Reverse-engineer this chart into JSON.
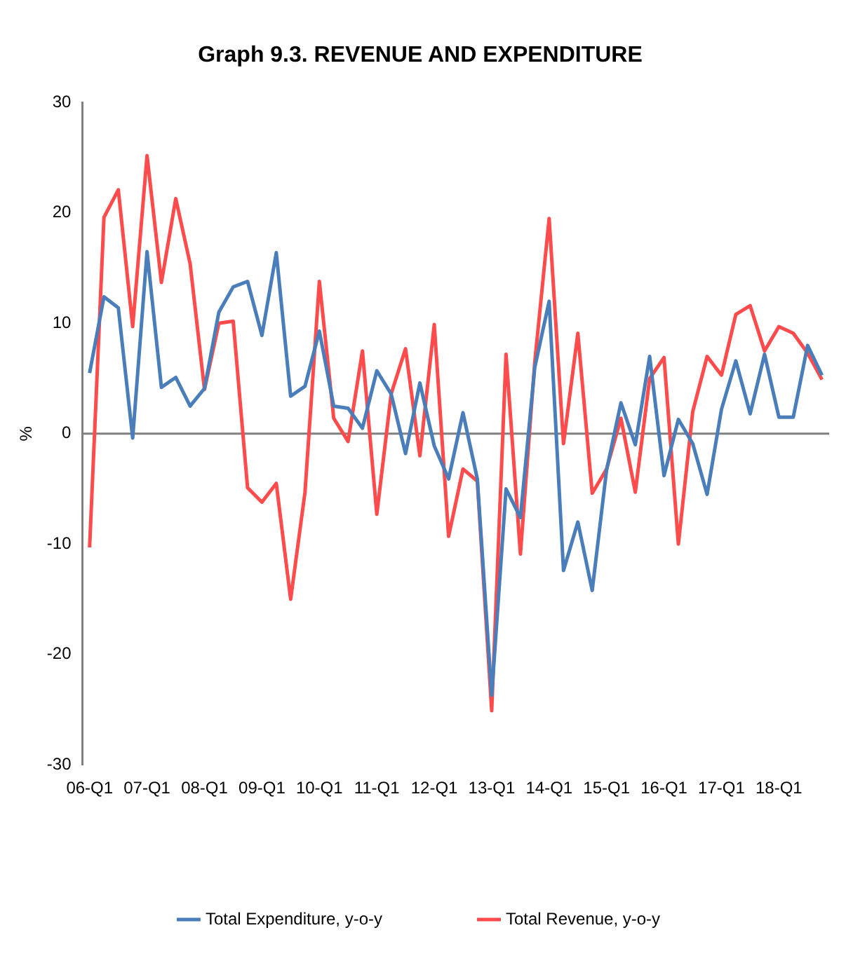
{
  "chart_data": {
    "type": "line",
    "title": "Graph 9.3. REVENUE AND EXPENDITURE",
    "ylabel": "%",
    "categories": [
      "06-Q1",
      null,
      null,
      null,
      "07-Q1",
      null,
      null,
      null,
      "08-Q1",
      null,
      null,
      null,
      "09-Q1",
      null,
      null,
      null,
      "10-Q1",
      null,
      null,
      null,
      "11-Q1",
      null,
      null,
      null,
      "12-Q1",
      null,
      null,
      null,
      "13-Q1",
      null,
      null,
      null,
      "14-Q1",
      null,
      null,
      null,
      "15-Q1",
      null,
      null,
      null,
      "16-Q1",
      null,
      null,
      null,
      "17-Q1",
      null,
      null,
      null,
      "18-Q1",
      null,
      null,
      null
    ],
    "series": [
      {
        "name": "Total Expenditure, y-o-y",
        "color": "#4a7ebb",
        "values": [
          5.5,
          12.4,
          11.4,
          -0.4,
          16.5,
          4.2,
          5.1,
          2.5,
          4.1,
          11.0,
          13.3,
          13.8,
          8.9,
          16.4,
          3.4,
          4.3,
          9.3,
          2.5,
          2.3,
          0.5,
          5.7,
          3.6,
          -1.8,
          4.6,
          -1.1,
          -4.1,
          1.9,
          -4.1,
          -23.7,
          -5.0,
          -7.6,
          6.0,
          12.0,
          -12.4,
          -8.0,
          -14.2,
          -3.3,
          2.8,
          -1.0,
          7.0,
          -3.8,
          1.3,
          -0.9,
          -5.5,
          2.2,
          6.6,
          1.8,
          7.2,
          1.5,
          1.5,
          8.0,
          5.3
        ]
      },
      {
        "name": "Total Revenue, y-o-y",
        "color": "#ff4b4b",
        "values": [
          -10.3,
          19.6,
          22.1,
          9.7,
          25.2,
          13.7,
          21.3,
          15.4,
          4.0,
          10.0,
          10.2,
          -4.9,
          -6.2,
          -4.5,
          -15.0,
          -5.3,
          13.8,
          1.4,
          -0.7,
          7.5,
          -7.3,
          3.6,
          7.7,
          -2.0,
          9.9,
          -9.3,
          -3.2,
          -4.3,
          -25.1,
          7.2,
          -10.9,
          6.5,
          19.5,
          -0.9,
          9.1,
          -5.4,
          -3.2,
          1.4,
          -5.3,
          5.0,
          6.9,
          -10.0,
          2.0,
          7.0,
          5.3,
          10.8,
          11.6,
          7.5,
          9.7,
          9.1,
          7.3,
          4.9
        ]
      }
    ],
    "ylim": [
      -30,
      30
    ],
    "yticks": [
      -30,
      -20,
      -10,
      0,
      10,
      20,
      30
    ],
    "ref_lines": [
      {
        "axis": "y",
        "value": 0,
        "color": "#808080"
      }
    ],
    "grid": false,
    "legend": "bottom",
    "marker": "none",
    "line_style": "solid"
  }
}
